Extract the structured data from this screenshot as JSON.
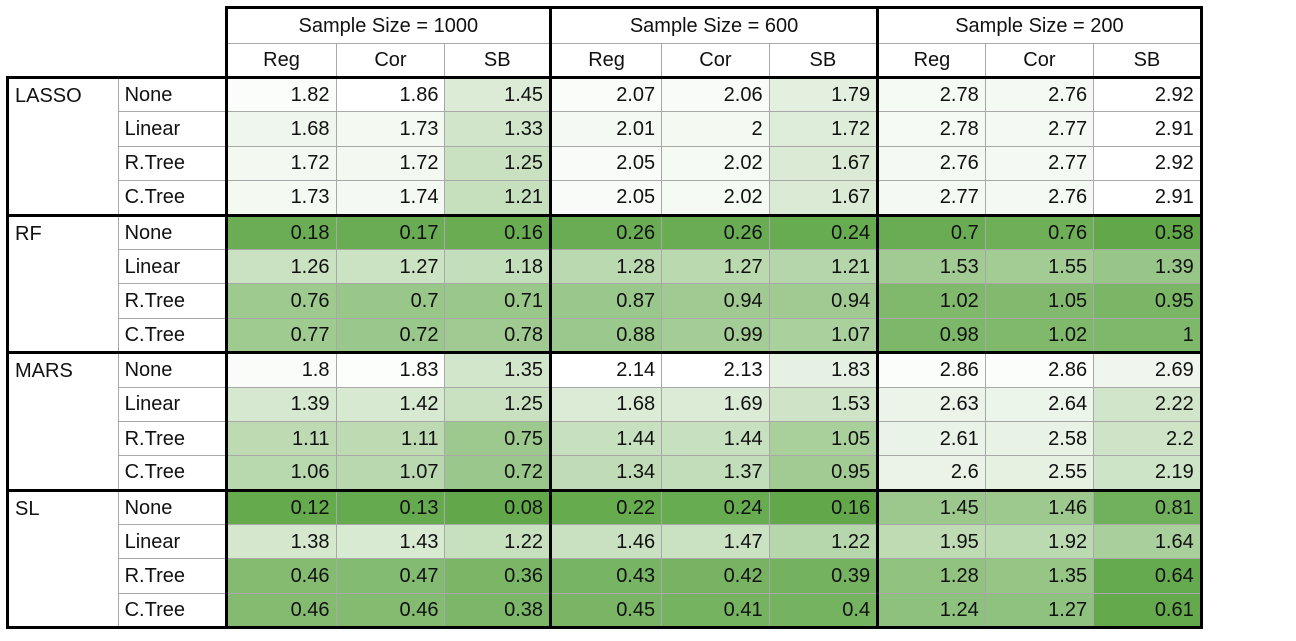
{
  "chart_data": {
    "type": "table",
    "column_groups": [
      {
        "label": "Sample Size = 1000",
        "columns": [
          "Reg",
          "Cor",
          "SB"
        ]
      },
      {
        "label": "Sample Size = 600",
        "columns": [
          "Reg",
          "Cor",
          "SB"
        ]
      },
      {
        "label": "Sample Size = 200",
        "columns": [
          "Reg",
          "Cor",
          "SB"
        ]
      }
    ],
    "row_groups": [
      {
        "label": "LASSO",
        "rows": [
          {
            "label": "None",
            "values": [
              "1.82",
              "1.86",
              "1.45",
              "2.07",
              "2.06",
              "1.79",
              "2.78",
              "2.76",
              "2.92"
            ]
          },
          {
            "label": "Linear",
            "values": [
              "1.68",
              "1.73",
              "1.33",
              "2.01",
              "2",
              "1.72",
              "2.78",
              "2.77",
              "2.91"
            ]
          },
          {
            "label": "R.Tree",
            "values": [
              "1.72",
              "1.72",
              "1.25",
              "2.05",
              "2.02",
              "1.67",
              "2.76",
              "2.77",
              "2.92"
            ]
          },
          {
            "label": "C.Tree",
            "values": [
              "1.73",
              "1.74",
              "1.21",
              "2.05",
              "2.02",
              "1.67",
              "2.77",
              "2.76",
              "2.91"
            ]
          }
        ]
      },
      {
        "label": "RF",
        "rows": [
          {
            "label": "None",
            "values": [
              "0.18",
              "0.17",
              "0.16",
              "0.26",
              "0.26",
              "0.24",
              "0.7",
              "0.76",
              "0.58"
            ]
          },
          {
            "label": "Linear",
            "values": [
              "1.26",
              "1.27",
              "1.18",
              "1.28",
              "1.27",
              "1.21",
              "1.53",
              "1.55",
              "1.39"
            ]
          },
          {
            "label": "R.Tree",
            "values": [
              "0.76",
              "0.7",
              "0.71",
              "0.87",
              "0.94",
              "0.94",
              "1.02",
              "1.05",
              "0.95"
            ]
          },
          {
            "label": "C.Tree",
            "values": [
              "0.77",
              "0.72",
              "0.78",
              "0.88",
              "0.99",
              "1.07",
              "0.98",
              "1.02",
              "1"
            ]
          }
        ]
      },
      {
        "label": "MARS",
        "rows": [
          {
            "label": "None",
            "values": [
              "1.8",
              "1.83",
              "1.35",
              "2.14",
              "2.13",
              "1.83",
              "2.86",
              "2.86",
              "2.69"
            ]
          },
          {
            "label": "Linear",
            "values": [
              "1.39",
              "1.42",
              "1.25",
              "1.68",
              "1.69",
              "1.53",
              "2.63",
              "2.64",
              "2.22"
            ]
          },
          {
            "label": "R.Tree",
            "values": [
              "1.11",
              "1.11",
              "0.75",
              "1.44",
              "1.44",
              "1.05",
              "2.61",
              "2.58",
              "2.2"
            ]
          },
          {
            "label": "C.Tree",
            "values": [
              "1.06",
              "1.07",
              "0.72",
              "1.34",
              "1.37",
              "0.95",
              "2.6",
              "2.55",
              "2.19"
            ]
          }
        ]
      },
      {
        "label": "SL",
        "rows": [
          {
            "label": "None",
            "values": [
              "0.12",
              "0.13",
              "0.08",
              "0.22",
              "0.24",
              "0.16",
              "1.45",
              "1.46",
              "0.81"
            ]
          },
          {
            "label": "Linear",
            "values": [
              "1.38",
              "1.43",
              "1.22",
              "1.46",
              "1.47",
              "1.22",
              "1.95",
              "1.92",
              "1.64"
            ]
          },
          {
            "label": "R.Tree",
            "values": [
              "0.46",
              "0.47",
              "0.36",
              "0.43",
              "0.42",
              "0.39",
              "1.28",
              "1.35",
              "0.64"
            ]
          },
          {
            "label": "C.Tree",
            "values": [
              "0.46",
              "0.46",
              "0.38",
              "0.45",
              "0.41",
              "0.4",
              "1.24",
              "1.27",
              "0.61"
            ]
          }
        ]
      }
    ],
    "color_scale": {
      "low": "#62a84a",
      "high": "#ffffff",
      "per_column_group": true
    }
  }
}
